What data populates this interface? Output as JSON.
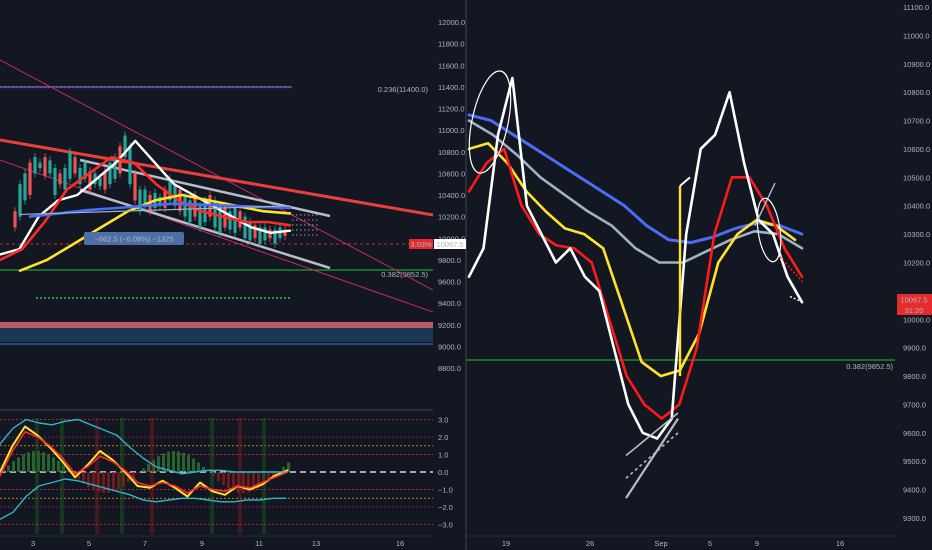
{
  "chart_data": [
    {
      "type": "line",
      "panel": "left-main",
      "y_ticks": [
        12000,
        11800,
        11600,
        11400,
        11200,
        11000,
        10800,
        10600,
        10400,
        10200,
        10000,
        9800,
        9600,
        9400,
        9200,
        9000,
        8800
      ],
      "y_tick_labels": [
        "12000.0",
        "11800.0",
        "11600.0",
        "11400.0",
        "11200.0",
        "11000.0",
        "10800.0",
        "10600.0",
        "10400.0",
        "10200.0",
        "10000.0",
        "9800.0",
        "9600.0",
        "9400.0",
        "9200.0",
        "9000.0",
        "8800.0"
      ],
      "ylim": [
        8700,
        12100
      ],
      "x_tick_labels": [
        "3",
        "5",
        "7",
        "9",
        "11",
        "13",
        "16"
      ],
      "fib_levels": [
        {
          "label": "0.236(11400.0)",
          "value": 11400,
          "color": "#5b6dd6"
        },
        {
          "label": "0.382(9852.5)",
          "value": 9852.5,
          "color": "#22c22b"
        }
      ],
      "measure_label": "−662.5 (−6.08%) −1325",
      "price_tag": "10067.5",
      "price_change": "3.03%",
      "series": [
        {
          "color": "#ffffff",
          "values": [
            9850,
            9900,
            10200,
            10350,
            10400,
            10550,
            10700,
            10900,
            10700,
            10500,
            10400,
            10300,
            10200,
            10100,
            10050,
            10070
          ]
        },
        {
          "color": "#ff2a2a",
          "values": [
            9800,
            9900,
            10150,
            10450,
            10600,
            10750,
            10700,
            10500,
            10350,
            10250,
            10200,
            10150,
            10150,
            10120
          ]
        },
        {
          "color": "#ffe32b",
          "values": [
            9700,
            9800,
            9950,
            10100,
            10250,
            10350,
            10400,
            10350,
            10300,
            10250,
            10230
          ]
        },
        {
          "color": "#4a6cf7",
          "values": [
            10200,
            10230,
            10260,
            10280,
            10300,
            10320,
            10310,
            10300,
            10290,
            10280
          ]
        }
      ]
    },
    {
      "type": "line",
      "panel": "left-oscillator",
      "y_ticks": [
        3,
        2,
        1,
        0,
        -1,
        -2,
        -3
      ],
      "y_tick_labels": [
        "3.0",
        "2.0",
        "1.0",
        "0.0",
        "−1.0",
        "−2.0",
        "−3.0"
      ],
      "ylim": [
        -3.5,
        3.5
      ]
    },
    {
      "type": "line",
      "panel": "right-main",
      "y_ticks": [
        11100,
        11000,
        10900,
        10800,
        10700,
        10600,
        10500,
        10400,
        10300,
        10200,
        10000,
        9900,
        9800,
        9700,
        9600,
        9500,
        9400,
        9300
      ],
      "y_tick_labels": [
        "11100.0",
        "11000.0",
        "10900.0",
        "10800.0",
        "10700.0",
        "10600.0",
        "10500.0",
        "10400.0",
        "10300.0",
        "10200.0",
        "10000.0",
        "9900.0",
        "9800.0",
        "9700.0",
        "9600.0",
        "9500.0",
        "9400.0",
        "9300.0"
      ],
      "ylim": [
        9240,
        11120
      ],
      "x_tick_labels": [
        "19",
        "26",
        "Sep",
        "5",
        "9",
        "16"
      ],
      "fib_levels": [
        {
          "label": "0.382(9852.5)",
          "value": 9852.5,
          "color": "#22c22b"
        }
      ],
      "price_tag": "10067.5",
      "countdown": "31:20",
      "series": [
        {
          "name": "price",
          "color": "#ffffff",
          "values": [
            10150,
            10250,
            10650,
            10850,
            10400,
            10300,
            10200,
            10250,
            10150,
            10100,
            9900,
            9700,
            9600,
            9580,
            9650,
            10300,
            10600,
            10650,
            10800,
            10550,
            10350,
            10300,
            10150,
            10060
          ]
        },
        {
          "name": "fast",
          "color": "#ff1a1a",
          "values": [
            10450,
            10550,
            10600,
            10400,
            10300,
            10260,
            10250,
            10200,
            10000,
            9800,
            9700,
            9650,
            9700,
            9900,
            10300,
            10500,
            10500,
            10400,
            10250,
            10150
          ]
        },
        {
          "name": "mid",
          "color": "#ffe32b",
          "values": [
            10600,
            10620,
            10550,
            10450,
            10380,
            10320,
            10300,
            10250,
            10050,
            9850,
            9800,
            9820,
            9950,
            10200,
            10300,
            10350,
            10330,
            10280
          ]
        },
        {
          "name": "slow",
          "color": "#4a6cf7",
          "values": [
            10720,
            10700,
            10650,
            10600,
            10550,
            10500,
            10450,
            10400,
            10330,
            10280,
            10270,
            10290,
            10320,
            10340,
            10330,
            10300
          ]
        },
        {
          "name": "slow2",
          "color": "#9fb2c8",
          "values": [
            10700,
            10650,
            10580,
            10500,
            10440,
            10380,
            10330,
            10250,
            10200,
            10200,
            10240,
            10280,
            10310,
            10300,
            10250
          ]
        }
      ]
    }
  ]
}
